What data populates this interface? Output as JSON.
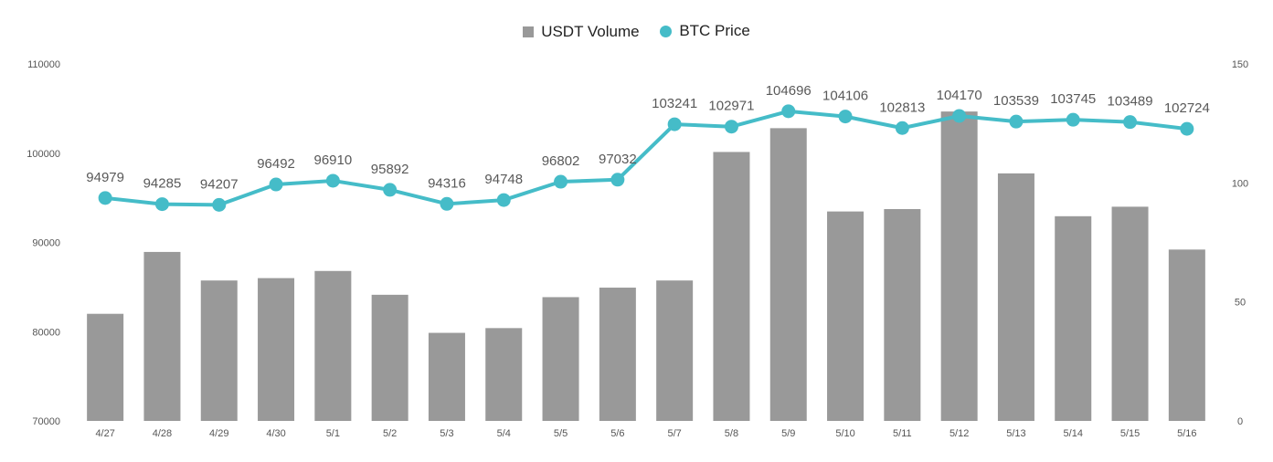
{
  "legend": {
    "bar_label": "USDT Volume",
    "line_label": "BTC Price"
  },
  "colors": {
    "bar": "#999999",
    "line": "#45BCC8",
    "axis_text": "#555555",
    "label_text": "#595959"
  },
  "chart_data": {
    "type": "bar",
    "categories": [
      "4/27",
      "4/28",
      "4/29",
      "4/30",
      "5/1",
      "5/2",
      "5/3",
      "5/4",
      "5/5",
      "5/6",
      "5/7",
      "5/8",
      "5/9",
      "5/10",
      "5/11",
      "5/12",
      "5/13",
      "5/14",
      "5/15",
      "5/16"
    ],
    "series": [
      {
        "name": "USDT Volume",
        "type": "bar",
        "axis": "right",
        "values": [
          45,
          71,
          59,
          60,
          63,
          53,
          37,
          39,
          52,
          56,
          59,
          113,
          123,
          88,
          89,
          130,
          104,
          86,
          90,
          72
        ]
      },
      {
        "name": "BTC Price",
        "type": "line",
        "axis": "left",
        "values": [
          94979,
          94285,
          94207,
          96492,
          96910,
          95892,
          94316,
          94748,
          96802,
          97032,
          103241,
          102971,
          104696,
          104106,
          102813,
          104170,
          103539,
          103745,
          103489,
          102724
        ]
      }
    ],
    "y_left": {
      "range": [
        70000,
        110000
      ],
      "ticks": [
        "70000",
        "80000",
        "90000",
        "100000",
        "110000"
      ]
    },
    "y_right": {
      "range": [
        0,
        150
      ],
      "ticks": [
        "0",
        "50",
        "100",
        "150"
      ]
    },
    "grid": false,
    "legend_position": "top-center"
  }
}
